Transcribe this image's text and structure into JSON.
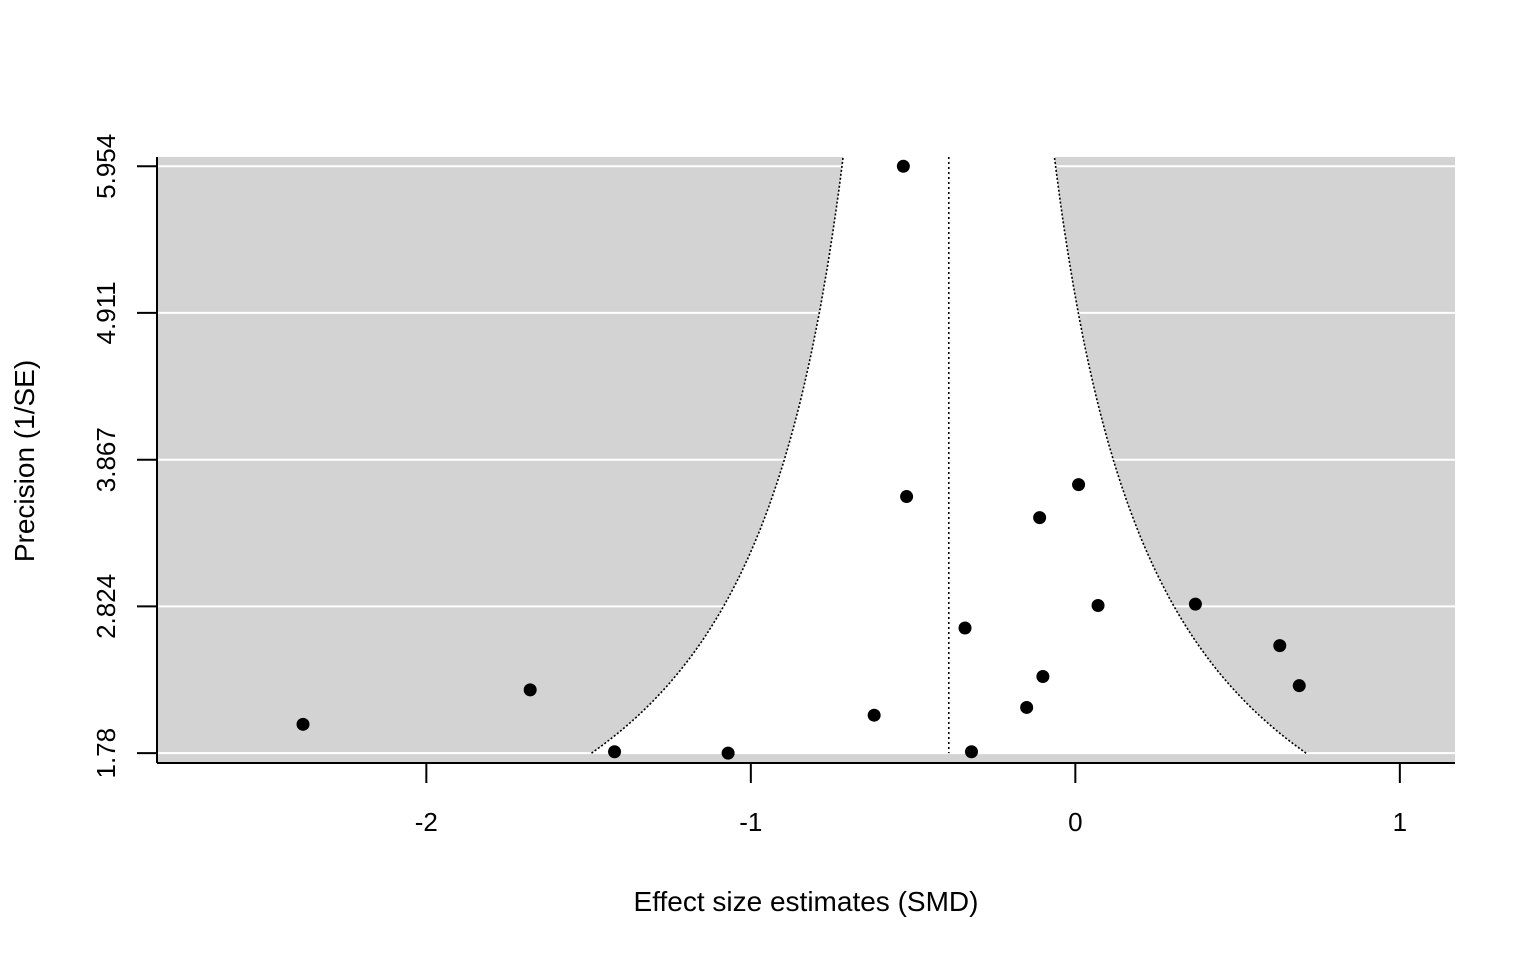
{
  "chart_data": {
    "type": "scatter",
    "title": "",
    "xlabel": "Effect size estimates (SMD)",
    "ylabel": "Precision (1/SE)",
    "xlim": [
      -2.83,
      1.17
    ],
    "ylim": [
      1.71,
      6.02
    ],
    "x_ticks": [
      -2,
      -1,
      0,
      1
    ],
    "x_tick_labels": [
      "-2",
      "-1",
      "0",
      "1"
    ],
    "y_ticks": [
      1.78,
      2.824,
      3.867,
      4.911,
      5.954
    ],
    "y_tick_labels": [
      "1.78",
      "2.824",
      "3.867",
      "4.911",
      "5.954"
    ],
    "grid": "horizontal",
    "pooled_estimate": -0.39,
    "funnel_z": 1.96,
    "colors": {
      "region_fill": "#d3d3d3",
      "points": "#000000",
      "gridlines": "#ffffff",
      "reference_lines": "#000000"
    },
    "points": [
      {
        "x": -0.53,
        "y": 5.954
      },
      {
        "x": -0.52,
        "y": 3.605
      },
      {
        "x": 0.01,
        "y": 3.69
      },
      {
        "x": -0.11,
        "y": 3.455
      },
      {
        "x": 0.07,
        "y": 2.83
      },
      {
        "x": 0.37,
        "y": 2.84
      },
      {
        "x": -0.34,
        "y": 2.67
      },
      {
        "x": 0.63,
        "y": 2.545
      },
      {
        "x": -0.1,
        "y": 2.325
      },
      {
        "x": 0.69,
        "y": 2.26
      },
      {
        "x": -1.68,
        "y": 2.23
      },
      {
        "x": -0.15,
        "y": 2.105
      },
      {
        "x": -0.62,
        "y": 2.05
      },
      {
        "x": -2.38,
        "y": 1.985
      },
      {
        "x": -1.42,
        "y": 1.79
      },
      {
        "x": -1.07,
        "y": 1.78
      },
      {
        "x": -0.32,
        "y": 1.79
      }
    ]
  }
}
